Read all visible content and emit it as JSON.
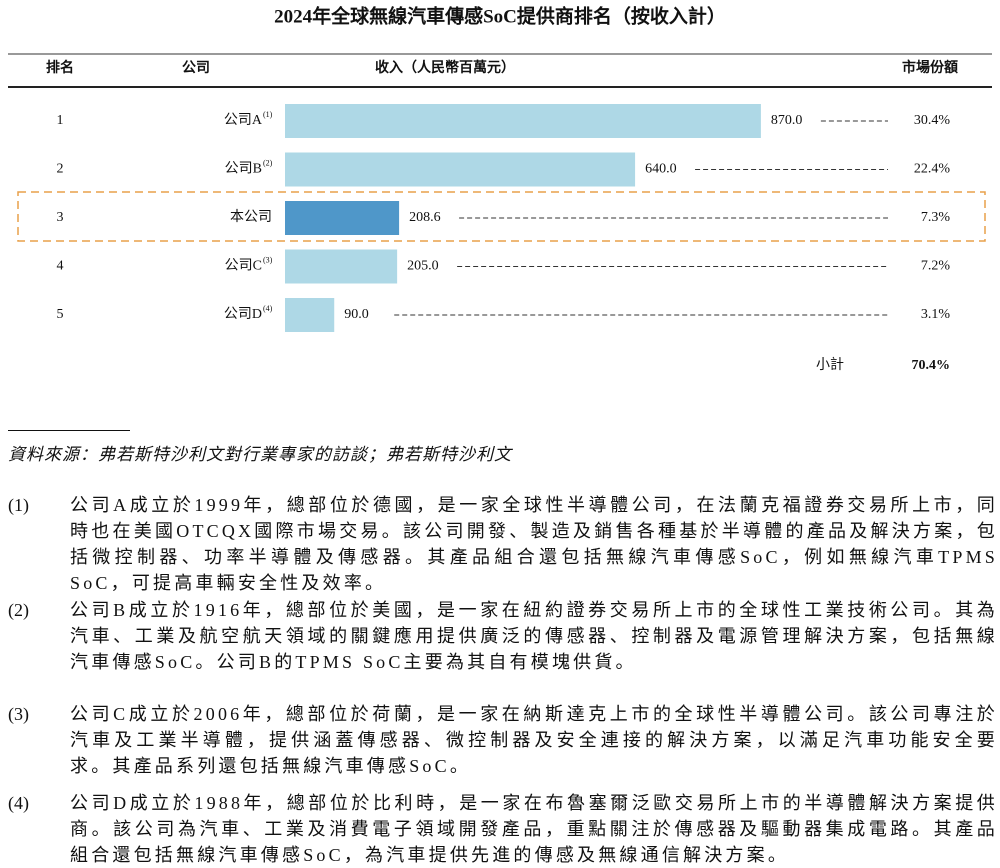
{
  "chart_data": {
    "type": "bar",
    "title": "2024年全球無線汽車傳感SoC提供商排名（按收入計）",
    "headers": [
      "排名",
      "公司",
      "收入（人民幣百萬元）",
      "市場份額"
    ],
    "ranks": [
      1,
      2,
      3,
      4,
      5
    ],
    "categories": [
      "公司A",
      "公司B",
      "本公司",
      "公司C",
      "公司D"
    ],
    "footnote_refs": [
      "(1)",
      "(2)",
      null,
      "(3)",
      "(4)"
    ],
    "values": [
      870.0,
      640.0,
      208.6,
      205.0,
      90.0
    ],
    "value_labels": [
      "870.0",
      "640.0",
      "208.6",
      "205.0",
      "90.0"
    ],
    "colors": [
      "#aed8e6",
      "#aed8e6",
      "#4f97c9",
      "#aed8e6",
      "#aed8e6"
    ],
    "shares": [
      "30.4%",
      "22.4%",
      "7.3%",
      "7.2%",
      "3.1%"
    ],
    "subtotal": {
      "label": "小計",
      "value": "70.4%"
    }
  },
  "source": "資料來源：弗若斯特沙利文對行業專家的訪談；弗若斯特沙利文",
  "notes": [
    {
      "marker": "(1)",
      "text": "公司A成立於1999年，總部位於德國，是一家全球性半導體公司，在法蘭克福證券交易所上市，同時也在美國OTCQX國際市場交易。該公司開發、製造及銷售各種基於半導體的產品及解決方案，包括微控制器、功率半導體及傳感器。其產品組合還包括無線汽車傳感SoC，例如無線汽車TPMS SoC，可提高車輛安全性及效率。"
    },
    {
      "marker": "(2)",
      "text": "公司B成立於1916年，總部位於美國，是一家在紐約證券交易所上市的全球性工業技術公司。其為汽車、工業及航空航天領域的關鍵應用提供廣泛的傳感器、控制器及電源管理解決方案，包括無線汽車傳感SoC。公司B的TPMS SoC主要為其自有模塊供貨。"
    },
    {
      "marker": "(3)",
      "text": "公司C成立於2006年，總部位於荷蘭，是一家在納斯達克上市的全球性半導體公司。該公司專注於汽車及工業半導體，提供涵蓋傳感器、微控制器及安全連接的解決方案，以滿足汽車功能安全要求。其產品系列還包括無線汽車傳感SoC。"
    },
    {
      "marker": "(4)",
      "text": "公司D成立於1988年，總部位於比利時，是一家在布魯塞爾泛歐交易所上市的半導體解決方案提供商。該公司為汽車、工業及消費電子領域開發產品，重點關注於傳感器及驅動器集成電路。其產品組合還包括無線汽車傳感SoC，為汽車提供先進的傳感及無線通信解決方案。"
    }
  ]
}
